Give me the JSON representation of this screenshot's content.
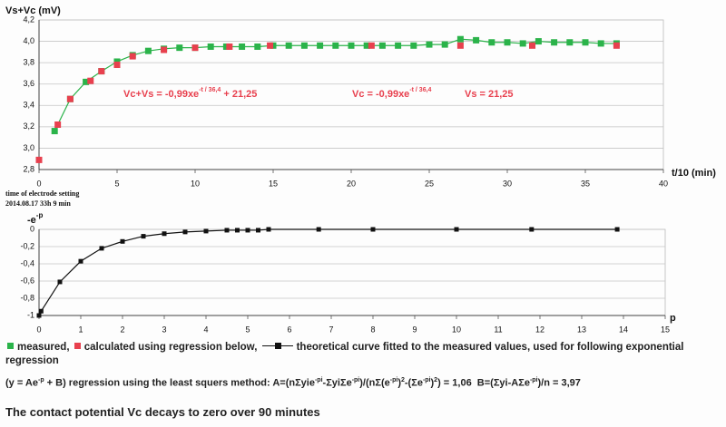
{
  "chart_data": [
    {
      "type": "scatter",
      "ylabel": "Vs+Vc (mV)",
      "xlabel": "t/10 (min)",
      "xlim": [
        0,
        40
      ],
      "xticks": [
        0,
        5,
        10,
        15,
        20,
        25,
        30,
        35,
        40
      ],
      "ylim": [
        2.8,
        4.2
      ],
      "yticks": [
        {
          "value": 2.8,
          "label": "2,8"
        },
        {
          "value": 3.0,
          "label": "3,0"
        },
        {
          "value": 3.2,
          "label": "3,2"
        },
        {
          "value": 3.4,
          "label": "3,4"
        },
        {
          "value": 3.6,
          "label": "3,6"
        },
        {
          "value": 3.8,
          "label": "3,8"
        },
        {
          "value": 4.0,
          "label": "4,0"
        },
        {
          "value": 4.2,
          "label": "4,2"
        }
      ],
      "grid": true,
      "series": [
        {
          "name": "measured,",
          "color": "#2bb34a",
          "line": true,
          "x": [
            1,
            2,
            3,
            4,
            5,
            6,
            7,
            8,
            9,
            10,
            11,
            12,
            13,
            14,
            15,
            16,
            17,
            18,
            19,
            20,
            21,
            22,
            23,
            24,
            25,
            26,
            27,
            28,
            29,
            30,
            31,
            32,
            33,
            34,
            35,
            36,
            37
          ],
          "values": [
            3.16,
            3.46,
            3.62,
            3.72,
            3.81,
            3.87,
            3.91,
            3.93,
            3.94,
            3.94,
            3.95,
            3.95,
            3.95,
            3.95,
            3.96,
            3.96,
            3.96,
            3.96,
            3.96,
            3.96,
            3.96,
            3.96,
            3.96,
            3.96,
            3.97,
            3.97,
            4.02,
            4.01,
            3.99,
            3.99,
            3.98,
            4.0,
            3.99,
            3.99,
            3.99,
            3.98,
            3.98
          ]
        },
        {
          "name": "calculated using regression below,",
          "color": "#e8404e",
          "line": false,
          "x": [
            0,
            1.2,
            2,
            3.3,
            4,
            5,
            6,
            8,
            10,
            12.2,
            14.8,
            21.3,
            27,
            31.6,
            37
          ],
          "values": [
            2.89,
            3.22,
            3.46,
            3.63,
            3.72,
            3.78,
            3.86,
            3.92,
            3.94,
            3.95,
            3.96,
            3.96,
            3.96,
            3.96,
            3.96
          ]
        }
      ],
      "annotations": [
        {
          "color": "#e8404e",
          "parts": [
            "Vc+Vs = -0,99xe",
            {
              "sup": "-t / 36,4"
            },
            " + 21,25"
          ]
        },
        {
          "color": "#e8404e",
          "parts": [
            "Vc = -0,99xe",
            {
              "sup": "-t / 36,4"
            }
          ]
        },
        {
          "color": "#e8404e",
          "parts": [
            "Vs = 21,25"
          ]
        }
      ]
    },
    {
      "type": "line",
      "ylabel": "-e",
      "ylabel_sup": "-p",
      "xlabel": "p",
      "xlim": [
        0,
        15
      ],
      "xticks": [
        0,
        1,
        2,
        3,
        4,
        5,
        6,
        7,
        8,
        9,
        10,
        11,
        12,
        13,
        14,
        15
      ],
      "ylim": [
        -1,
        0
      ],
      "yticks": [
        -1,
        {
          "value": -0.8,
          "label": "-0,8"
        },
        {
          "value": -0.6,
          "label": "-0,6"
        },
        {
          "value": -0.4,
          "label": "-0,4"
        },
        {
          "value": -0.2,
          "label": "-0,2"
        },
        0
      ],
      "grid": true,
      "series": [
        {
          "name": "theoretical curve fitted to the measured values, used for following exponential regression",
          "color": "#111111",
          "line": true,
          "x": [
            0,
            0.05,
            0.5,
            1,
            1.5,
            2,
            2.5,
            3,
            3.5,
            4,
            4.5,
            4.75,
            5,
            5.25,
            5.5,
            6.7,
            8,
            10,
            11.8,
            13.85
          ],
          "values": [
            -1,
            -0.95,
            -0.61,
            -0.37,
            -0.22,
            -0.14,
            -0.08,
            -0.05,
            -0.03,
            -0.02,
            -0.01,
            -0.01,
            -0.01,
            -0.01,
            0,
            0,
            0,
            0,
            0,
            0
          ]
        }
      ]
    }
  ],
  "note": {
    "line1": "time of electrode setting",
    "line2": "2014.08.17 33h 9 min"
  },
  "formula": [
    "(y = Ae",
    {
      "sup": "-p"
    },
    " + B) regression using the least squers method: A=(nΣyie",
    {
      "sup": "-pi"
    },
    "-ΣyiΣe",
    {
      "sup": "-pi"
    },
    ")/(nΣ(e",
    {
      "sup": "-pi"
    },
    ")",
    {
      "sup": "2"
    },
    "-(Σe",
    {
      "sup": "-pi"
    },
    ")",
    {
      "sup": "2"
    },
    ") = 1,06  B=(Σyi-AΣe",
    {
      "sup": "-pi"
    },
    ")/n = 3,97"
  ],
  "caption": "The contact potential Vc decays to zero over 90 minutes"
}
